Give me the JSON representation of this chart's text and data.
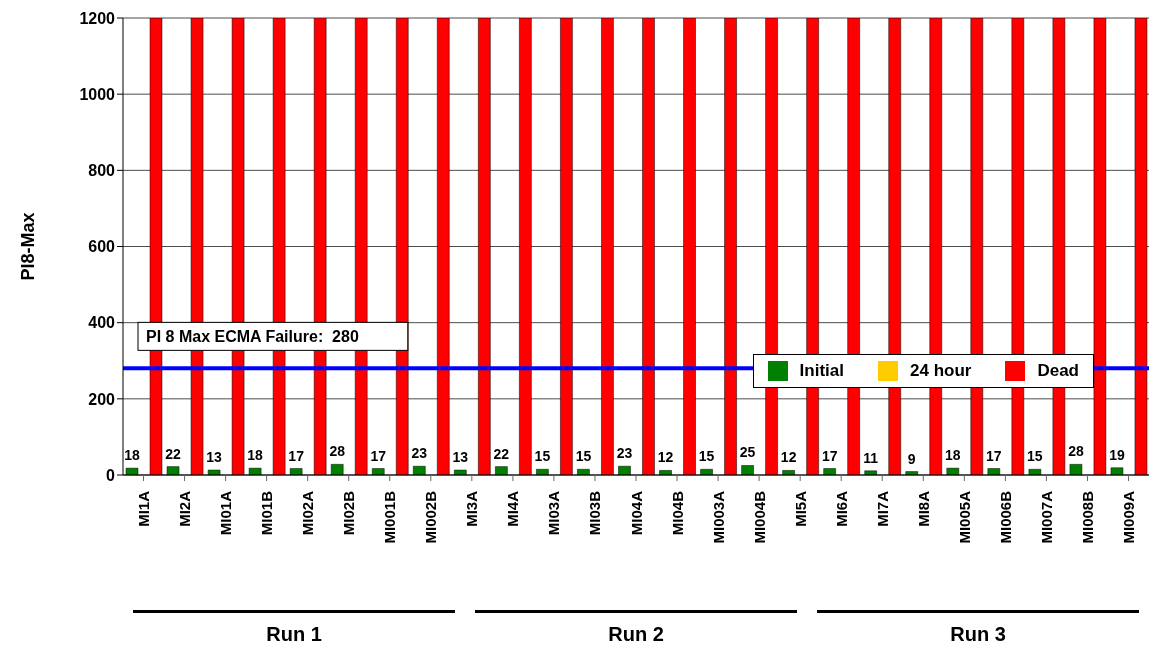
{
  "chart_data": {
    "type": "bar",
    "ylabel": "PI8-Max",
    "categories": [
      "MI1A",
      "MI2A",
      "MI01A",
      "MI01B",
      "MI02A",
      "MI02B",
      "MI001B",
      "MI002B",
      "MI3A",
      "MI4A",
      "MI03A",
      "MI03B",
      "MI04A",
      "MI04B",
      "MI003A",
      "MI004B",
      "MI5A",
      "MI6A",
      "MI7A",
      "MI8A",
      "MI005A",
      "MI006B",
      "MI007A",
      "MI008B",
      "MI009A"
    ],
    "series": [
      {
        "name": "Initial",
        "color": "#008000",
        "values": [
          18,
          22,
          13,
          18,
          17,
          28,
          17,
          23,
          13,
          22,
          15,
          15,
          23,
          12,
          15,
          25,
          12,
          17,
          11,
          9,
          18,
          17,
          15,
          28,
          19
        ],
        "value_labels": [
          "18",
          "22",
          "13",
          "18",
          "17",
          "28",
          "17",
          "23",
          "13",
          "22",
          "15",
          "15",
          "23",
          "12",
          "15",
          "25",
          "12",
          "17",
          "11",
          "9",
          "18",
          "17",
          "15",
          "28",
          "19"
        ]
      },
      {
        "name": "24 hour",
        "color": "#ffcc00",
        "values": [
          null,
          null,
          null,
          null,
          null,
          null,
          null,
          null,
          null,
          null,
          null,
          null,
          null,
          null,
          null,
          null,
          null,
          null,
          null,
          null,
          null,
          null,
          null,
          null,
          null
        ]
      },
      {
        "name": "Dead",
        "color": "#ff0000",
        "values": [
          1200,
          1200,
          1200,
          1200,
          1200,
          1200,
          1200,
          1200,
          1200,
          1200,
          1200,
          1200,
          1200,
          1200,
          1200,
          1200,
          1200,
          1200,
          1200,
          1200,
          1200,
          1200,
          1200,
          1200,
          1200
        ]
      }
    ],
    "ylim": [
      0,
      1200
    ],
    "yticks": [
      0,
      200,
      400,
      600,
      800,
      1000,
      1200
    ],
    "grid": "y",
    "legend": "right",
    "ref_lines": [
      {
        "axis": "y",
        "value": 280,
        "label": "PI 8 Max ECMA Failure:  280",
        "color": "#0000ff"
      }
    ],
    "annotations": [
      "Run 1",
      "Run 2",
      "Run 3"
    ]
  }
}
